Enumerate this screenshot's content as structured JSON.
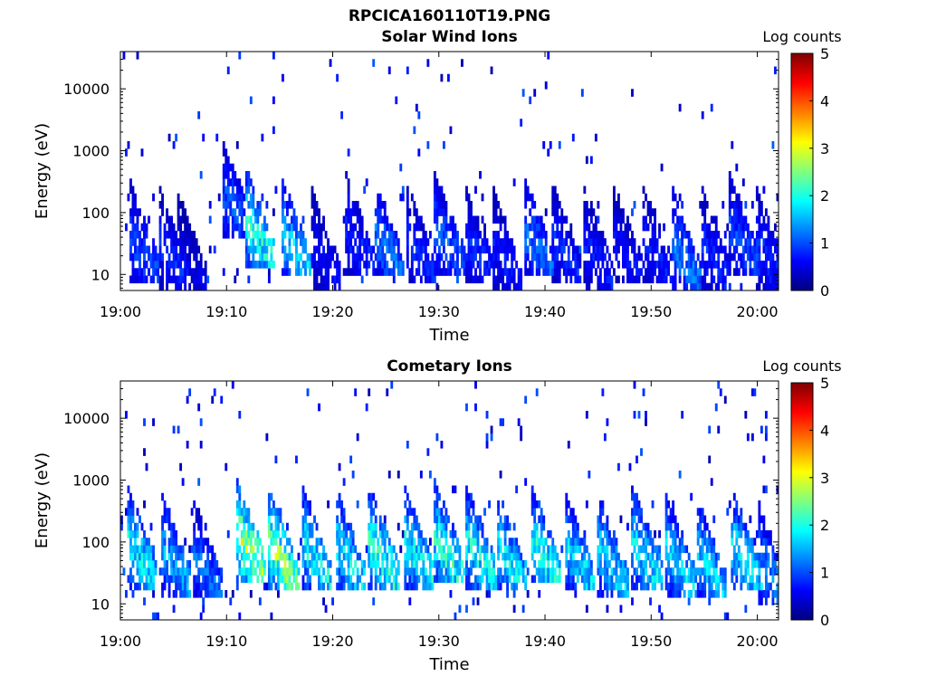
{
  "header": {
    "filename": "RPCICA160110T19.PNG"
  },
  "colormap": [
    "#00007f",
    "#0000ff",
    "#007fff",
    "#00ffff",
    "#7fff7f",
    "#ffff00",
    "#ff7f00",
    "#ff0000",
    "#7f0000"
  ],
  "chart_data": [
    {
      "type": "heatmap",
      "title": "Solar Wind Ions",
      "xlabel": "Time",
      "ylabel": "Energy (eV)",
      "yscale": "log",
      "ylim": [
        5.5,
        40000
      ],
      "xlim": [
        "19:00",
        "20:02"
      ],
      "x_ticks": [
        "19:00",
        "19:10",
        "19:20",
        "19:30",
        "19:40",
        "19:50",
        "20:00"
      ],
      "y_ticks": [
        "10",
        "100",
        "1000",
        "10000"
      ],
      "colorbar": {
        "label": "Log counts",
        "ticks": [
          "0",
          "1",
          "2",
          "3",
          "4",
          "5"
        ],
        "range": [
          0,
          5
        ]
      },
      "bursts": [
        {
          "t": 1.5,
          "e": 30,
          "level": 1.2
        },
        {
          "t": 4.2,
          "e": 25,
          "level": 1.0
        },
        {
          "t": 6.0,
          "e": 20,
          "level": 0.6
        },
        {
          "t": 10.2,
          "e": 150,
          "level": 1.3
        },
        {
          "t": 12.3,
          "e": 60,
          "level": 2.4
        },
        {
          "t": 15.8,
          "e": 35,
          "level": 2.0
        },
        {
          "t": 18.5,
          "e": 25,
          "level": 0.8
        },
        {
          "t": 21.8,
          "e": 40,
          "level": 1.0
        },
        {
          "t": 24.5,
          "e": 35,
          "level": 1.5
        },
        {
          "t": 27.5,
          "e": 30,
          "level": 1.0
        },
        {
          "t": 30.2,
          "e": 45,
          "level": 1.3
        },
        {
          "t": 33.0,
          "e": 30,
          "level": 1.0
        },
        {
          "t": 35.6,
          "e": 25,
          "level": 0.9
        },
        {
          "t": 38.6,
          "e": 40,
          "level": 1.4
        },
        {
          "t": 41.2,
          "e": 30,
          "level": 1.0
        },
        {
          "t": 44.3,
          "e": 25,
          "level": 0.9
        },
        {
          "t": 47.0,
          "e": 30,
          "level": 0.8
        },
        {
          "t": 49.8,
          "e": 30,
          "level": 0.9
        },
        {
          "t": 52.5,
          "e": 25,
          "level": 1.5
        },
        {
          "t": 55.3,
          "e": 25,
          "level": 1.0
        },
        {
          "t": 58.0,
          "e": 40,
          "level": 1.2
        },
        {
          "t": 60.5,
          "e": 25,
          "level": 1.0
        }
      ],
      "background_level": 0.4
    },
    {
      "type": "heatmap",
      "title": "Cometary Ions",
      "xlabel": "Time",
      "ylabel": "Energy (eV)",
      "yscale": "log",
      "ylim": [
        5.5,
        40000
      ],
      "xlim": [
        "19:00",
        "20:02"
      ],
      "x_ticks": [
        "19:00",
        "19:10",
        "19:20",
        "19:30",
        "19:40",
        "19:50",
        "20:00"
      ],
      "y_ticks": [
        "10",
        "100",
        "1000",
        "10000"
      ],
      "colorbar": {
        "label": "Log counts",
        "ticks": [
          "0",
          "1",
          "2",
          "3",
          "4",
          "5"
        ],
        "range": [
          0,
          5
        ]
      },
      "bursts": [
        {
          "t": 1.2,
          "e": 80,
          "level": 2.2
        },
        {
          "t": 4.5,
          "e": 60,
          "level": 1.8
        },
        {
          "t": 7.4,
          "e": 50,
          "level": 1.4
        },
        {
          "t": 11.5,
          "e": 100,
          "level": 3.3
        },
        {
          "t": 14.6,
          "e": 70,
          "level": 3.1
        },
        {
          "t": 17.6,
          "e": 80,
          "level": 2.3
        },
        {
          "t": 20.9,
          "e": 70,
          "level": 2.2
        },
        {
          "t": 24.0,
          "e": 80,
          "level": 2.6
        },
        {
          "t": 27.3,
          "e": 80,
          "level": 2.3
        },
        {
          "t": 30.2,
          "e": 90,
          "level": 2.5
        },
        {
          "t": 33.2,
          "e": 80,
          "level": 2.3
        },
        {
          "t": 36.0,
          "e": 70,
          "level": 2.2
        },
        {
          "t": 39.2,
          "e": 90,
          "level": 2.4
        },
        {
          "t": 42.4,
          "e": 70,
          "level": 2.1
        },
        {
          "t": 45.6,
          "e": 60,
          "level": 2.1
        },
        {
          "t": 48.8,
          "e": 80,
          "level": 2.2
        },
        {
          "t": 52.0,
          "e": 60,
          "level": 2.0
        },
        {
          "t": 54.9,
          "e": 50,
          "level": 2.0
        },
        {
          "t": 58.2,
          "e": 70,
          "level": 2.2
        },
        {
          "t": 60.7,
          "e": 40,
          "level": 1.6
        }
      ],
      "background_level": 0.6
    }
  ]
}
